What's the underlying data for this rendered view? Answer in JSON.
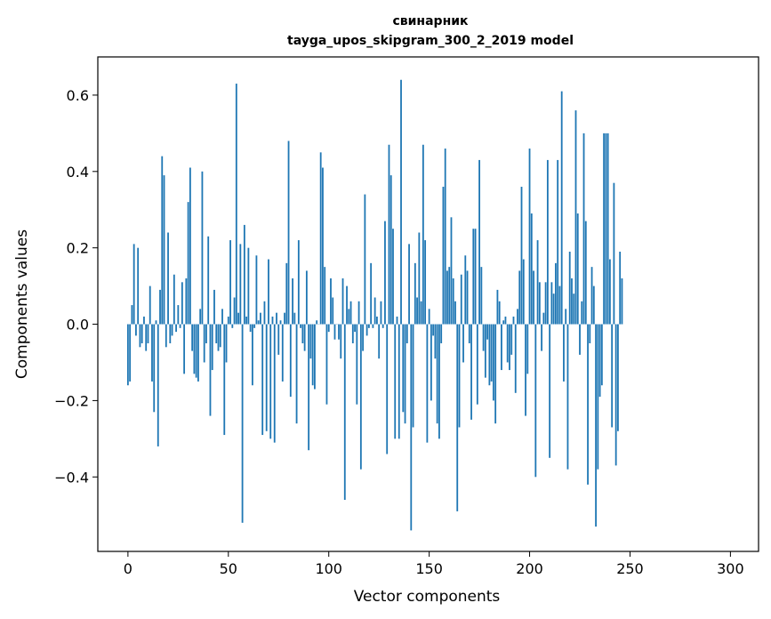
{
  "chart_data": {
    "type": "bar",
    "title": "свинарник",
    "subtitle": "tayga_upos_skipgram_300_2_2019 model",
    "xlabel": "Vector components",
    "ylabel": "Components values",
    "xlim": [
      -15,
      314
    ],
    "ylim": [
      -0.595,
      0.7
    ],
    "xticks": [
      0,
      50,
      100,
      150,
      200,
      250,
      300
    ],
    "yticks": [
      -0.4,
      -0.2,
      0.0,
      0.2,
      0.4,
      0.6
    ],
    "ytick_labels": [
      "−0.4",
      "−0.2",
      "0.0",
      "0.2",
      "0.4",
      "0.6"
    ],
    "xtick_labels": [
      "0",
      "50",
      "100",
      "150",
      "200",
      "250",
      "300"
    ],
    "grid": false,
    "bar_color": "#1f77b4",
    "values": [
      -0.16,
      -0.15,
      0.05,
      0.21,
      -0.03,
      0.2,
      -0.06,
      -0.05,
      0.02,
      -0.07,
      -0.05,
      0.1,
      -0.15,
      -0.23,
      0.01,
      -0.32,
      0.09,
      0.44,
      0.39,
      -0.06,
      0.24,
      -0.05,
      -0.03,
      0.13,
      -0.02,
      0.05,
      -0.01,
      0.11,
      -0.13,
      0.12,
      0.32,
      0.41,
      -0.07,
      -0.13,
      -0.14,
      -0.15,
      0.04,
      0.4,
      -0.1,
      -0.05,
      0.23,
      -0.24,
      -0.12,
      0.09,
      -0.05,
      -0.07,
      -0.06,
      0.04,
      -0.29,
      -0.1,
      0.02,
      0.22,
      -0.01,
      0.07,
      0.63,
      0.03,
      0.21,
      -0.52,
      0.26,
      0.02,
      0.2,
      -0.02,
      -0.16,
      -0.01,
      0.18,
      0.01,
      0.03,
      -0.29,
      0.06,
      -0.28,
      0.17,
      -0.3,
      0.02,
      -0.31,
      0.03,
      -0.08,
      0.01,
      -0.15,
      0.03,
      0.16,
      0.48,
      -0.19,
      0.12,
      0.03,
      -0.26,
      0.22,
      -0.01,
      -0.05,
      -0.07,
      0.14,
      -0.33,
      -0.09,
      -0.16,
      -0.17,
      0.01,
      0.0,
      0.45,
      0.41,
      0.15,
      -0.21,
      -0.02,
      0.12,
      0.07,
      -0.04,
      0.0,
      -0.04,
      -0.09,
      0.12,
      -0.46,
      0.1,
      0.04,
      0.06,
      -0.05,
      -0.02,
      -0.21,
      0.06,
      -0.38,
      -0.07,
      0.34,
      -0.03,
      -0.01,
      0.16,
      -0.01,
      0.07,
      0.02,
      -0.09,
      0.06,
      -0.01,
      0.27,
      -0.34,
      0.47,
      0.39,
      0.25,
      -0.3,
      0.02,
      -0.3,
      0.64,
      -0.23,
      -0.26,
      -0.05,
      0.21,
      -0.54,
      -0.27,
      0.16,
      0.07,
      0.24,
      0.06,
      0.47,
      0.22,
      -0.31,
      0.04,
      -0.2,
      -0.03,
      -0.09,
      -0.26,
      -0.3,
      -0.05,
      0.36,
      0.46,
      0.14,
      0.15,
      0.28,
      0.12,
      0.06,
      -0.49,
      -0.27,
      0.13,
      -0.1,
      0.18,
      0.14,
      -0.05,
      -0.25,
      0.25,
      0.25,
      -0.21,
      0.43,
      0.15,
      -0.07,
      -0.14,
      -0.04,
      -0.16,
      -0.15,
      -0.2,
      -0.26,
      0.09,
      0.06,
      -0.12,
      0.01,
      0.02,
      -0.1,
      -0.12,
      -0.08,
      0.02,
      -0.18,
      0.04,
      0.14,
      0.36,
      0.17,
      -0.24,
      -0.13,
      0.46,
      0.29,
      0.14,
      -0.4,
      0.22,
      0.11,
      -0.07,
      0.03,
      0.11,
      0.43,
      -0.35,
      0.11,
      0.08,
      0.16,
      0.43,
      0.1,
      0.61,
      -0.15,
      0.04,
      -0.38,
      0.19,
      0.12,
      0.08,
      0.56,
      0.29,
      -0.08,
      0.06,
      0.5,
      0.27,
      -0.42,
      -0.05,
      0.15,
      0.1,
      -0.53,
      -0.38,
      -0.19,
      -0.16,
      0.5,
      0.5,
      0.5,
      0.17,
      -0.27,
      0.37,
      -0.37,
      -0.28,
      0.19,
      0.12
    ]
  }
}
